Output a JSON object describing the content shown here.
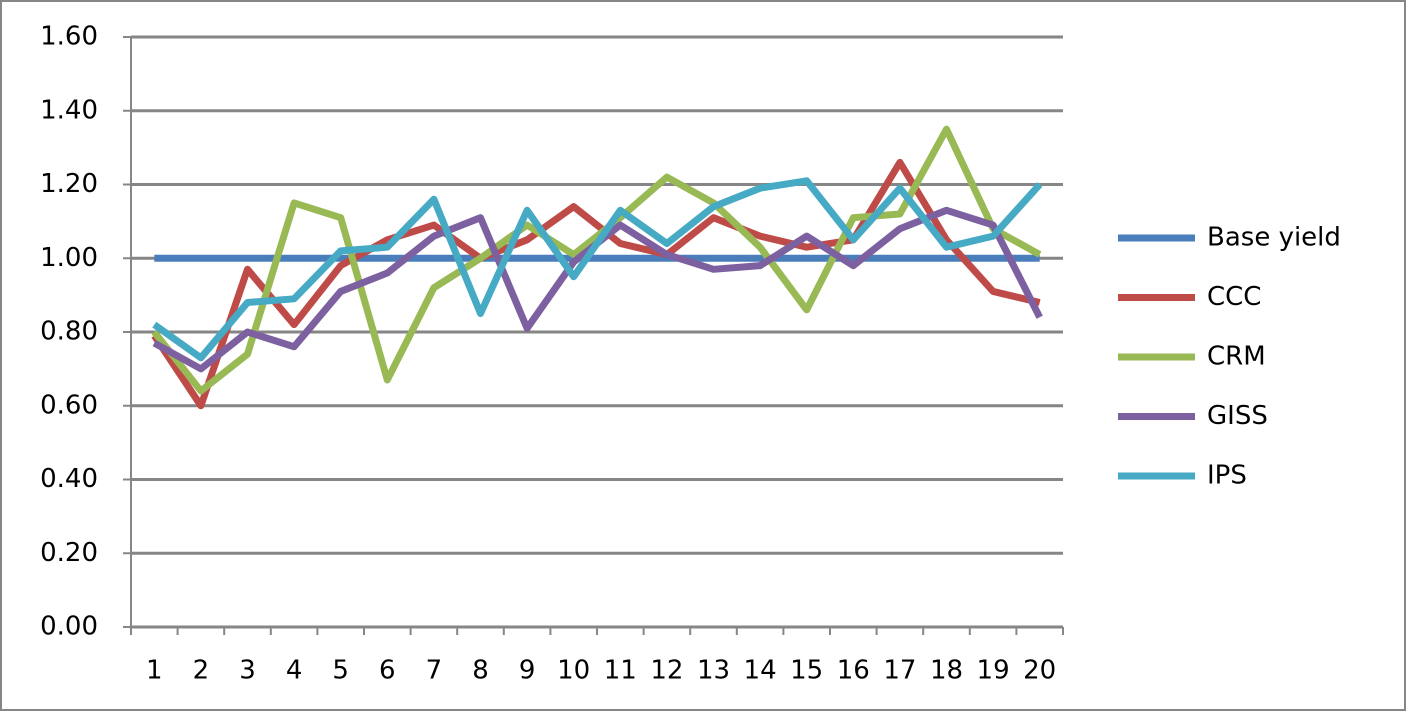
{
  "chart_data": {
    "type": "line",
    "categories": [
      "1",
      "2",
      "3",
      "4",
      "5",
      "6",
      "7",
      "8",
      "9",
      "10",
      "11",
      "12",
      "13",
      "14",
      "15",
      "16",
      "17",
      "18",
      "19",
      "20"
    ],
    "series": [
      {
        "name": "Base yield",
        "color": "#4a7ebb",
        "values": [
          1,
          1,
          1,
          1,
          1,
          1,
          1,
          1,
          1,
          1,
          1,
          1,
          1,
          1,
          1,
          1,
          1,
          1,
          1,
          1
        ]
      },
      {
        "name": "CCC",
        "color": "#be4b48",
        "values": [
          0.79,
          0.6,
          0.97,
          0.82,
          0.98,
          1.05,
          1.09,
          1.0,
          1.05,
          1.14,
          1.04,
          1.01,
          1.11,
          1.06,
          1.03,
          1.05,
          1.26,
          1.05,
          0.91,
          0.88
        ]
      },
      {
        "name": "CRM",
        "color": "#98b954",
        "values": [
          0.8,
          0.64,
          0.74,
          1.15,
          1.11,
          0.67,
          0.92,
          1.0,
          1.09,
          1.01,
          1.11,
          1.22,
          1.15,
          1.03,
          0.86,
          1.11,
          1.12,
          1.35,
          1.08,
          1.01
        ]
      },
      {
        "name": "GISS",
        "color": "#7d60a0",
        "values": [
          0.77,
          0.7,
          0.8,
          0.76,
          0.91,
          0.96,
          1.06,
          1.11,
          0.81,
          0.99,
          1.09,
          1.01,
          0.97,
          0.98,
          1.06,
          0.98,
          1.08,
          1.13,
          1.09,
          0.84
        ]
      },
      {
        "name": "IPS",
        "color": "#46aac5",
        "values": [
          0.82,
          0.73,
          0.88,
          0.89,
          1.02,
          1.03,
          1.16,
          0.85,
          1.13,
          0.95,
          1.13,
          1.04,
          1.14,
          1.19,
          1.21,
          1.05,
          1.19,
          1.03,
          1.06,
          1.2
        ]
      }
    ],
    "ylim": [
      0,
      1.6
    ],
    "yticks": [
      {
        "value": 0,
        "label": "0.00"
      },
      {
        "value": 0.2,
        "label": "0.20"
      },
      {
        "value": 0.4,
        "label": "0.40"
      },
      {
        "value": 0.6,
        "label": "0.60"
      },
      {
        "value": 0.8,
        "label": "0.80"
      },
      {
        "value": 1.0,
        "label": "1.00"
      },
      {
        "value": 1.2,
        "label": "1.20"
      },
      {
        "value": 1.4,
        "label": "1.40"
      },
      {
        "value": 1.6,
        "label": "1.60"
      }
    ],
    "grid": true,
    "legend": "right"
  }
}
